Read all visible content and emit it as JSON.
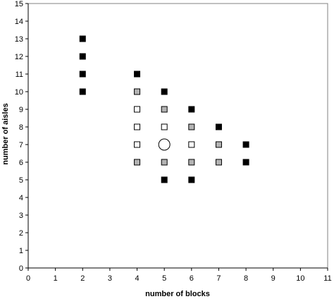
{
  "chart_data": {
    "type": "scatter",
    "xlabel": "number of blocks",
    "ylabel": "number of aisles",
    "xlim": [
      0,
      11
    ],
    "ylim": [
      0,
      15
    ],
    "x_ticks": [
      0,
      1,
      2,
      3,
      4,
      5,
      6,
      7,
      8,
      9,
      10,
      11
    ],
    "y_ticks": [
      0,
      1,
      2,
      3,
      4,
      5,
      6,
      7,
      8,
      9,
      10,
      11,
      12,
      13,
      14,
      15
    ],
    "grid": false,
    "legend": "none",
    "series": [
      {
        "marker": "square",
        "fill": "#000000",
        "stroke": "#000000",
        "points": [
          [
            2,
            13
          ],
          [
            2,
            12
          ],
          [
            2,
            11
          ],
          [
            2,
            10
          ],
          [
            4,
            11
          ],
          [
            5,
            10
          ],
          [
            6,
            9
          ],
          [
            7,
            8
          ],
          [
            8,
            7
          ],
          [
            8,
            6
          ],
          [
            5,
            5
          ],
          [
            6,
            5
          ]
        ]
      },
      {
        "marker": "square",
        "fill": "#b3b3b3",
        "stroke": "#000000",
        "points": [
          [
            4,
            10
          ],
          [
            5,
            9
          ],
          [
            6,
            8
          ],
          [
            7,
            7
          ],
          [
            4,
            6
          ],
          [
            5,
            6
          ],
          [
            6,
            6
          ],
          [
            7,
            6
          ]
        ]
      },
      {
        "marker": "square",
        "fill": "#ffffff",
        "stroke": "#000000",
        "points": [
          [
            4,
            9
          ],
          [
            4,
            8
          ],
          [
            5,
            8
          ],
          [
            4,
            7
          ],
          [
            6,
            7
          ]
        ]
      },
      {
        "marker": "circle",
        "fill": "#ffffff",
        "stroke": "#000000",
        "points": [
          [
            5,
            7
          ]
        ]
      }
    ]
  }
}
